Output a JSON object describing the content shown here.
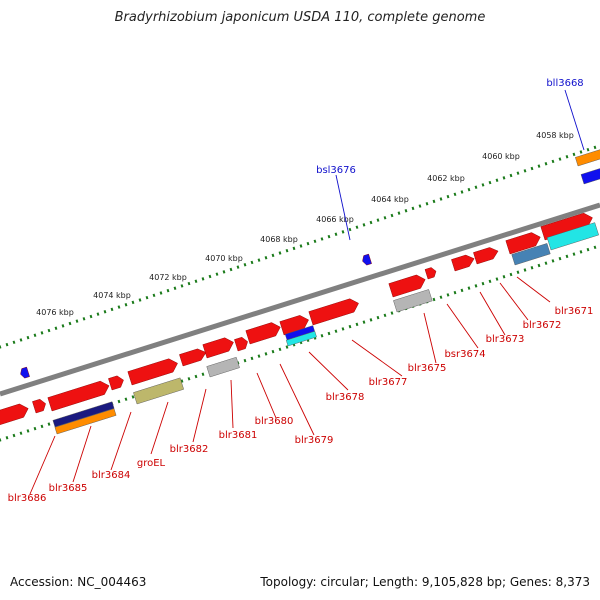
{
  "title": "Bradyrhizobium japonicum USDA 110, complete genome",
  "footer": {
    "accession": "Accession: NC_004463",
    "summary": "Topology: circular; Length: 9,105,828 bp; Genes: 8,373"
  },
  "colors": {
    "background": "#ffffff",
    "backbone": "#808080",
    "tick": "#1a7a1a",
    "forward_label": "#1010cc",
    "reverse_label": "#cc0000",
    "gene_red": "#ee1111",
    "orange": "#ff8c00",
    "navy": "#1a1a80",
    "olive": "#bdb76b",
    "gray": "#b5b5b5",
    "blue": "#1010ee",
    "cyan": "#22e5e5",
    "steelblue": "#4682b4"
  },
  "scale_labels": [
    "4058 kbp",
    "4060 kbp",
    "4062 kbp",
    "4064 kbp",
    "4066 kbp",
    "4068 kbp",
    "4070 kbp",
    "4072 kbp",
    "4074 kbp",
    "4076 kbp"
  ],
  "forward_gene_labels": [
    "bll3668",
    "bsl3676"
  ],
  "reverse_gene_labels": [
    "blr3671",
    "blr3672",
    "blr3673",
    "bsr3674",
    "blr3675",
    "blr3677",
    "blr3678",
    "blr3679",
    "blr3680",
    "blr3681",
    "blr3682",
    "groEL",
    "blr3684",
    "blr3685",
    "blr3686"
  ]
}
